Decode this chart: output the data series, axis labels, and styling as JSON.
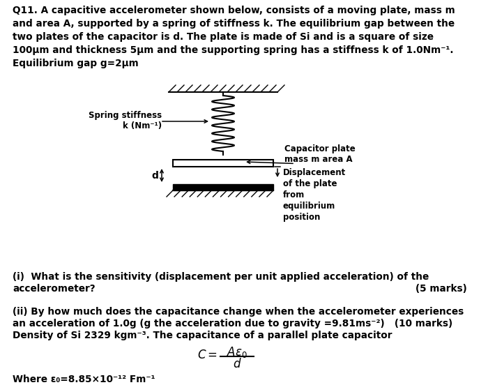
{
  "bg_color": "#ffffff",
  "text_color": "#000000",
  "title_text": "Q11. A capacitive accelerometer shown below, consists of a moving plate, mass m\nand area A, supported by a spring of stiffness k. The equilibrium gap between the\ntwo plates of the capacitor is d. The plate is made of Si and is a square of size\n100μm and thickness 5μm and the supporting spring has a stiffness k of 1.0Nm⁻¹.\nEquilibrium gap g=2μm",
  "question_i_line1": "(i)  What is the sensitivity (displacement per unit applied acceleration) of the",
  "question_i_line2": "accelerometer?",
  "question_i_marks": "(5 marks)",
  "question_ii_line1": "(ii) By how much does the capacitance change when the accelerometer experiences",
  "question_ii_line2": "an acceleration of 1.0g (g the acceleration due to gravity =9.81ms⁻²)   (10 marks)",
  "question_ii_line3": "Density of Si 2329 kgm⁻³. The capacitance of a parallel plate capacitor",
  "where_text": "Where ε₀=8.85×10⁻¹² Fm⁻¹",
  "spring_label_line1": "Spring stiffness",
  "spring_label_line2": "k (Nm⁻¹)",
  "cap_label_line1": "Capacitor plate",
  "cap_label_line2": "mass m area A",
  "disp_label": "Displacement\nof the plate\nfrom\nequilibrium\nposition",
  "d_label": "d",
  "font_size_body": 9.8,
  "font_size_label": 8.5,
  "font_size_formula": 12
}
